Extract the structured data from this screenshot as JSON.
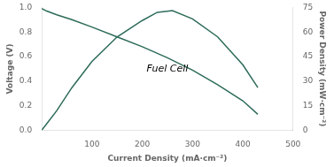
{
  "chart_data": {
    "type": "line",
    "title": "Fuel Cell",
    "xlabel": "Current Density (mA·cm⁻²)",
    "ylabel": "Voltage (V)",
    "y2label": "Power Density (mW·cm⁻²)",
    "xlim": [
      0,
      500
    ],
    "xticks": [
      100,
      200,
      300,
      400,
      500
    ],
    "ylim": [
      0,
      1.0
    ],
    "yticks": [
      {
        "value": 0.0,
        "label": "0.0"
      },
      0.2,
      0.4,
      0.6,
      0.8,
      {
        "value": 1.0,
        "label": "1.0"
      }
    ],
    "y2lim": [
      0,
      75
    ],
    "y2ticks": [
      0,
      15,
      30,
      45,
      60,
      75
    ],
    "grid": false,
    "series": [
      {
        "color": "#2d6b59",
        "x": [
          0,
          10,
          30,
          60,
          100,
          150,
          200,
          250,
          300,
          350,
          400,
          430
        ],
        "values": [
          0.99,
          0.97,
          0.94,
          0.9,
          0.84,
          0.76,
          0.68,
          0.59,
          0.49,
          0.37,
          0.24,
          0.13
        ]
      },
      {
        "color": "#2d6b59",
        "axis": "y2",
        "x": [
          0,
          10,
          30,
          60,
          100,
          150,
          200,
          230,
          260,
          300,
          350,
          400,
          430
        ],
        "values": [
          0,
          4,
          12,
          26,
          42,
          57,
          67,
          72,
          73,
          68,
          57,
          40,
          26
        ]
      }
    ]
  }
}
